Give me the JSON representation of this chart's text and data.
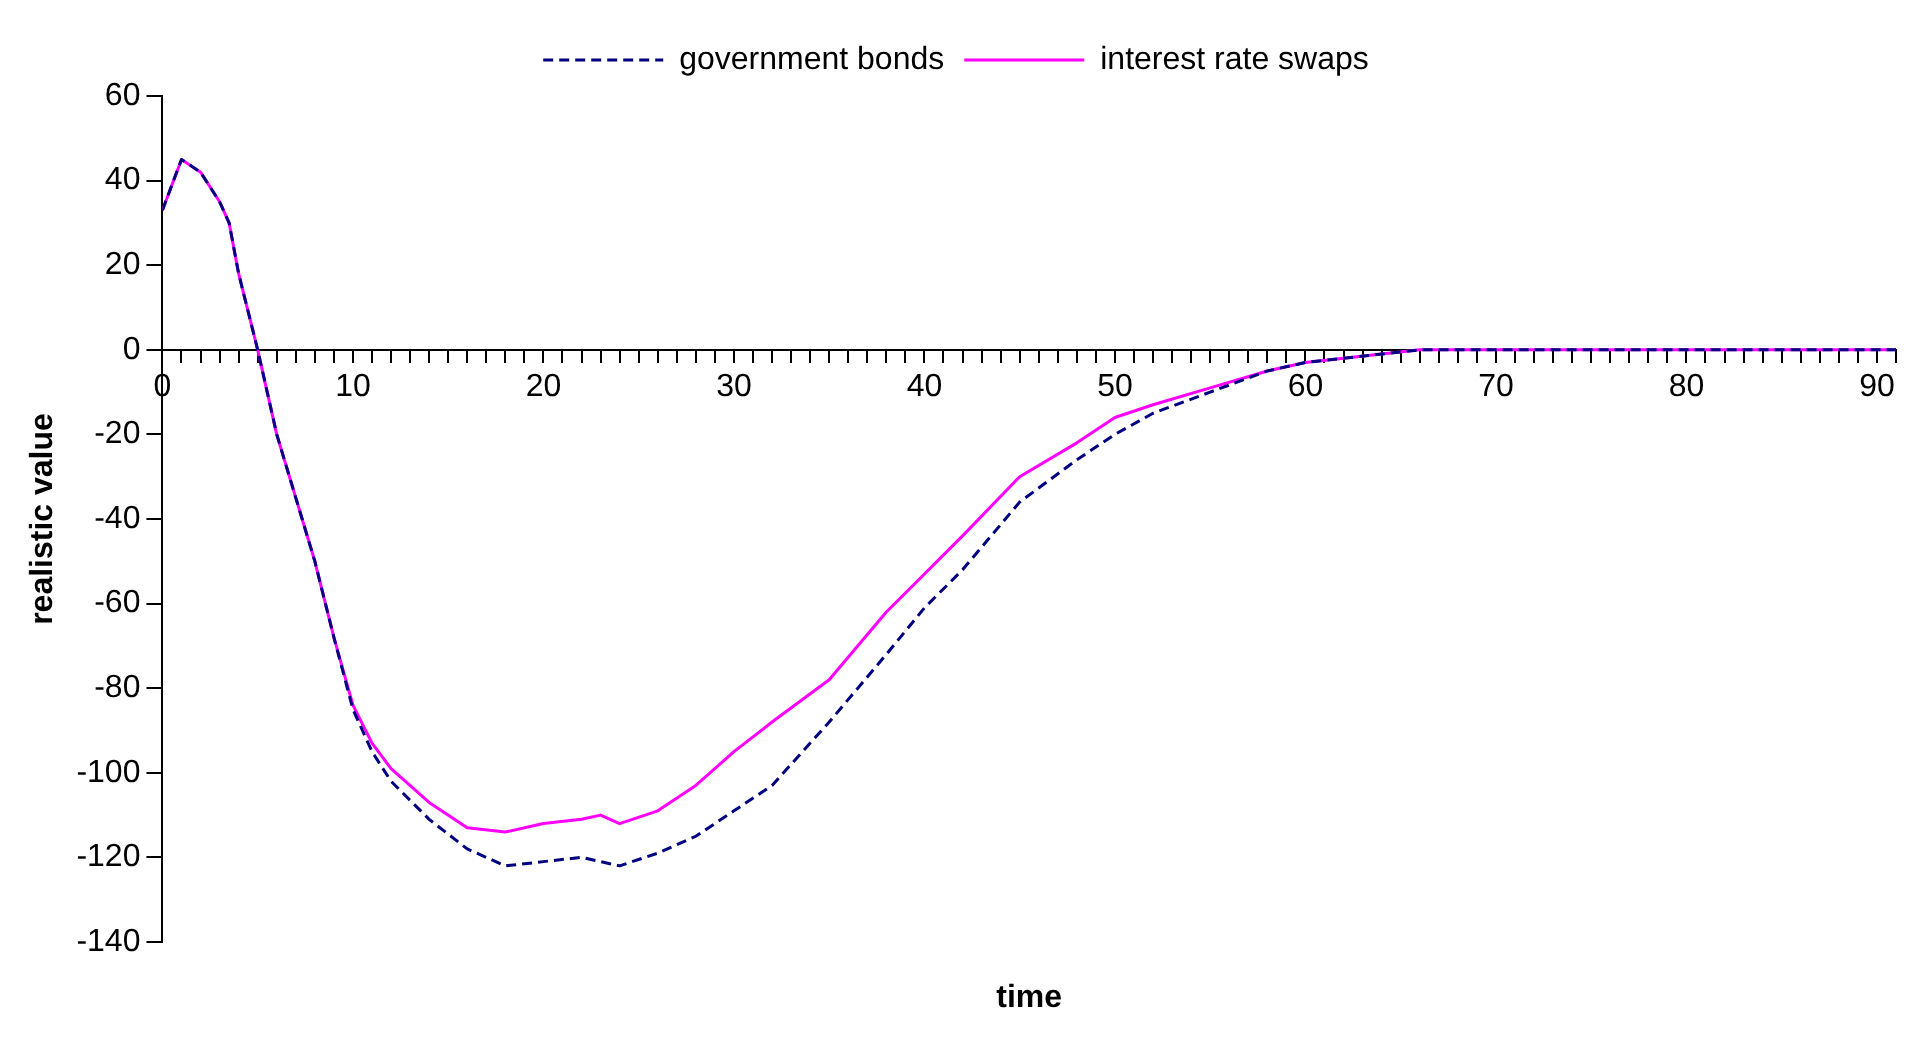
{
  "chart_data": {
    "type": "line",
    "xlabel": "time",
    "ylabel": "realistic value",
    "xlim": [
      0,
      91
    ],
    "ylim": [
      -140,
      60
    ],
    "xticks": [
      0,
      {
        "value": 1,
        "label": null
      },
      {
        "value": 2,
        "label": null
      },
      {
        "value": 3,
        "label": null
      },
      {
        "value": 4,
        "label": null
      },
      {
        "value": 5,
        "label": null
      },
      {
        "value": 6,
        "label": null
      },
      {
        "value": 7,
        "label": null
      },
      {
        "value": 8,
        "label": null
      },
      {
        "value": 9,
        "label": null
      },
      10,
      {
        "value": 11,
        "label": null
      },
      {
        "value": 12,
        "label": null
      },
      {
        "value": 13,
        "label": null
      },
      {
        "value": 14,
        "label": null
      },
      {
        "value": 15,
        "label": null
      },
      {
        "value": 16,
        "label": null
      },
      {
        "value": 17,
        "label": null
      },
      {
        "value": 18,
        "label": null
      },
      {
        "value": 19,
        "label": null
      },
      20,
      {
        "value": 21,
        "label": null
      },
      {
        "value": 22,
        "label": null
      },
      {
        "value": 23,
        "label": null
      },
      {
        "value": 24,
        "label": null
      },
      {
        "value": 25,
        "label": null
      },
      {
        "value": 26,
        "label": null
      },
      {
        "value": 27,
        "label": null
      },
      {
        "value": 28,
        "label": null
      },
      {
        "value": 29,
        "label": null
      },
      30,
      {
        "value": 31,
        "label": null
      },
      {
        "value": 32,
        "label": null
      },
      {
        "value": 33,
        "label": null
      },
      {
        "value": 34,
        "label": null
      },
      {
        "value": 35,
        "label": null
      },
      {
        "value": 36,
        "label": null
      },
      {
        "value": 37,
        "label": null
      },
      {
        "value": 38,
        "label": null
      },
      {
        "value": 39,
        "label": null
      },
      40,
      {
        "value": 41,
        "label": null
      },
      {
        "value": 42,
        "label": null
      },
      {
        "value": 43,
        "label": null
      },
      {
        "value": 44,
        "label": null
      },
      {
        "value": 45,
        "label": null
      },
      {
        "value": 46,
        "label": null
      },
      {
        "value": 47,
        "label": null
      },
      {
        "value": 48,
        "label": null
      },
      {
        "value": 49,
        "label": null
      },
      50,
      {
        "value": 51,
        "label": null
      },
      {
        "value": 52,
        "label": null
      },
      {
        "value": 53,
        "label": null
      },
      {
        "value": 54,
        "label": null
      },
      {
        "value": 55,
        "label": null
      },
      {
        "value": 56,
        "label": null
      },
      {
        "value": 57,
        "label": null
      },
      {
        "value": 58,
        "label": null
      },
      {
        "value": 59,
        "label": null
      },
      60,
      {
        "value": 61,
        "label": null
      },
      {
        "value": 62,
        "label": null
      },
      {
        "value": 63,
        "label": null
      },
      {
        "value": 64,
        "label": null
      },
      {
        "value": 65,
        "label": null
      },
      {
        "value": 66,
        "label": null
      },
      {
        "value": 67,
        "label": null
      },
      {
        "value": 68,
        "label": null
      },
      {
        "value": 69,
        "label": null
      },
      70,
      {
        "value": 71,
        "label": null
      },
      {
        "value": 72,
        "label": null
      },
      {
        "value": 73,
        "label": null
      },
      {
        "value": 74,
        "label": null
      },
      {
        "value": 75,
        "label": null
      },
      {
        "value": 76,
        "label": null
      },
      {
        "value": 77,
        "label": null
      },
      {
        "value": 78,
        "label": null
      },
      {
        "value": 79,
        "label": null
      },
      80,
      {
        "value": 81,
        "label": null
      },
      {
        "value": 82,
        "label": null
      },
      {
        "value": 83,
        "label": null
      },
      {
        "value": 84,
        "label": null
      },
      {
        "value": 85,
        "label": null
      },
      {
        "value": 86,
        "label": null
      },
      {
        "value": 87,
        "label": null
      },
      {
        "value": 88,
        "label": null
      },
      {
        "value": 89,
        "label": null
      },
      90,
      {
        "value": 91,
        "label": null
      }
    ],
    "yticks": [
      -140,
      -120,
      -100,
      -80,
      -60,
      -40,
      -20,
      0,
      20,
      40,
      60
    ],
    "legend": "top",
    "marker": "none",
    "grid": false,
    "series": [
      {
        "name": "government bonds",
        "color": "#000080",
        "line_style": "dashed",
        "x": [
          0,
          1,
          2,
          3,
          3.5,
          4,
          4.5,
          5,
          5.5,
          6,
          7,
          8,
          9,
          10,
          11,
          12,
          14,
          16,
          18,
          20,
          22,
          24,
          26,
          28,
          30,
          32,
          35,
          38,
          40,
          42,
          45,
          48,
          50,
          52,
          55,
          58,
          60,
          62,
          64,
          66,
          91
        ],
        "values": [
          33,
          45,
          42,
          35,
          30,
          18,
          9,
          0,
          -10,
          -20,
          -35,
          -50,
          -68,
          -85,
          -95,
          -102,
          -111,
          -118,
          -122,
          -121,
          -120,
          -122,
          -119,
          -115,
          -109,
          -103,
          -88,
          -72,
          -61,
          -52,
          -36,
          -26,
          -20,
          -15,
          -10,
          -5,
          -3,
          -2,
          -1,
          0,
          0
        ]
      },
      {
        "name": "interest rate swaps",
        "color": "#ff00ff",
        "line_style": "solid",
        "x": [
          0,
          1,
          2,
          3,
          3.5,
          4,
          4.5,
          5,
          5.5,
          6,
          7,
          8,
          9,
          10,
          11,
          12,
          14,
          16,
          18,
          20,
          22,
          23,
          24,
          26,
          28,
          30,
          32,
          35,
          38,
          40,
          42,
          45,
          48,
          50,
          52,
          55,
          58,
          60,
          62,
          64,
          66,
          91
        ],
        "values": [
          33,
          45,
          42,
          35,
          30,
          18,
          9,
          0,
          -10,
          -20,
          -35,
          -50,
          -68,
          -84,
          -93,
          -99,
          -107,
          -113,
          -114,
          -112,
          -111,
          -110,
          -112,
          -109,
          -103,
          -95,
          -88,
          -78,
          -62,
          -53,
          -44,
          -30,
          -22,
          -16,
          -13,
          -9,
          -5,
          -3,
          -2,
          -1,
          0,
          0
        ]
      }
    ]
  }
}
